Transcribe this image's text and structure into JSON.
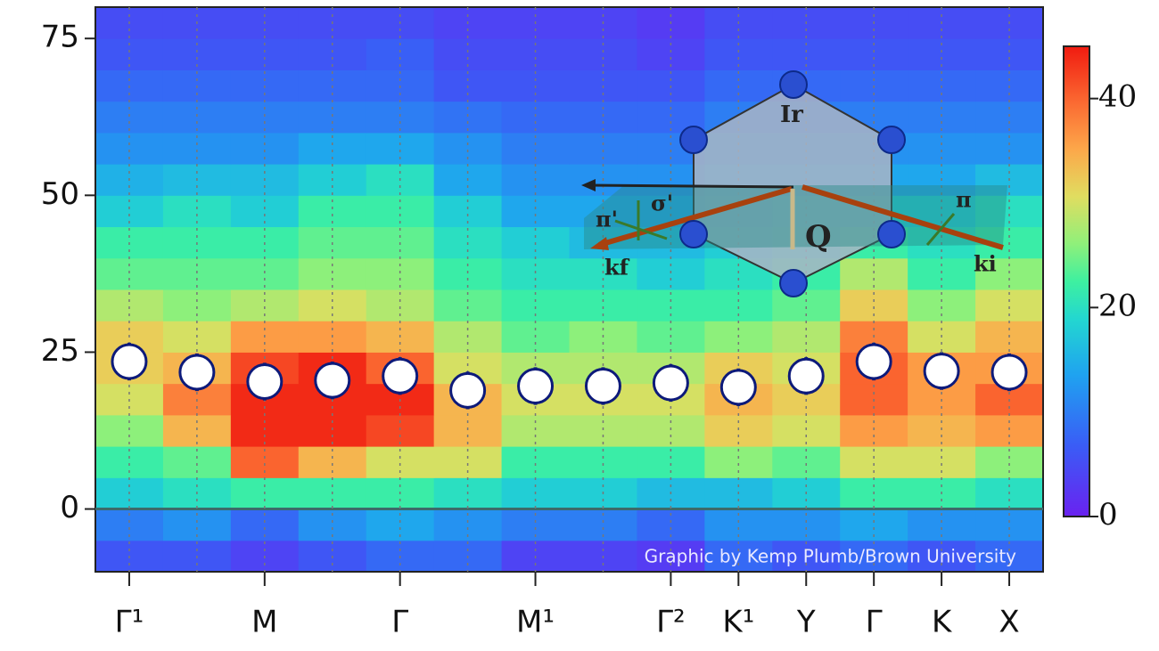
{
  "chart_data": {
    "type": "heatmap-points",
    "categories": [
      "Γ¹",
      null,
      "M",
      null,
      "Γ",
      null,
      "M¹",
      null,
      "Γ²",
      "K¹",
      "Y",
      "Γ",
      "K",
      "X"
    ],
    "y_bins": [
      -10,
      -5,
      0,
      5,
      10,
      15,
      20,
      25,
      30,
      35,
      40,
      45,
      50,
      55,
      60,
      65,
      70,
      75,
      80
    ],
    "z": [
      [
        6,
        6,
        4,
        6,
        8,
        8,
        4,
        4,
        3,
        8,
        6,
        8,
        6,
        8
      ],
      [
        10,
        12,
        8,
        12,
        14,
        12,
        10,
        10,
        8,
        12,
        12,
        14,
        12,
        12
      ],
      [
        18,
        20,
        22,
        22,
        22,
        20,
        18,
        18,
        16,
        16,
        18,
        22,
        22,
        20
      ],
      [
        22,
        24,
        40,
        34,
        30,
        30,
        22,
        22,
        22,
        26,
        24,
        30,
        30,
        26
      ],
      [
        26,
        34,
        44,
        44,
        42,
        34,
        28,
        28,
        28,
        32,
        30,
        36,
        34,
        36
      ],
      [
        30,
        38,
        44,
        44,
        44,
        34,
        30,
        30,
        30,
        34,
        32,
        40,
        36,
        40
      ],
      [
        32,
        34,
        42,
        44,
        40,
        30,
        28,
        28,
        28,
        32,
        30,
        40,
        36,
        36
      ],
      [
        32,
        30,
        36,
        36,
        34,
        28,
        24,
        26,
        24,
        26,
        28,
        38,
        30,
        34
      ],
      [
        28,
        26,
        28,
        30,
        28,
        24,
        22,
        22,
        22,
        22,
        24,
        32,
        26,
        30
      ],
      [
        24,
        24,
        24,
        26,
        26,
        22,
        20,
        20,
        18,
        20,
        22,
        28,
        22,
        26
      ],
      [
        22,
        22,
        22,
        24,
        24,
        20,
        18,
        16,
        16,
        18,
        20,
        22,
        20,
        22
      ],
      [
        18,
        20,
        18,
        22,
        22,
        18,
        14,
        14,
        14,
        16,
        18,
        18,
        18,
        20
      ],
      [
        15,
        16,
        16,
        18,
        20,
        14,
        12,
        12,
        12,
        14,
        14,
        14,
        14,
        16
      ],
      [
        12,
        12,
        12,
        14,
        14,
        12,
        10,
        10,
        10,
        12,
        12,
        12,
        12,
        12
      ],
      [
        10,
        10,
        10,
        10,
        10,
        9,
        8,
        8,
        8,
        10,
        10,
        10,
        10,
        10
      ],
      [
        8,
        8,
        8,
        8,
        8,
        6,
        6,
        6,
        6,
        8,
        8,
        8,
        8,
        8
      ],
      [
        6,
        6,
        6,
        6,
        7,
        5,
        5,
        5,
        4,
        6,
        6,
        6,
        6,
        6
      ],
      [
        5,
        5,
        5,
        5,
        5,
        4,
        4,
        4,
        3,
        5,
        5,
        5,
        5,
        5
      ]
    ],
    "values": [
      23.5,
      21.8,
      20.3,
      20.5,
      21.2,
      18.9,
      19.6,
      19.6,
      20.1,
      19.4,
      21.2,
      23.5,
      22,
      21.8
    ],
    "errors": [
      3,
      3,
      3,
      3,
      3,
      3,
      3,
      3,
      3,
      3,
      3,
      3,
      3,
      3
    ],
    "ylim": [
      -10,
      80
    ],
    "yticks": [
      0,
      25,
      50,
      75
    ],
    "clim": [
      0,
      45
    ],
    "cticks": [
      0,
      20,
      40
    ],
    "annotations": {
      "ir": "Ir",
      "pi_prime": "π'",
      "sigma_prime": "σ'",
      "q": "Q",
      "kf": "kf",
      "ki": "ki",
      "pi": "π",
      "credit": "Graphic by Kemp Plumb/Brown University"
    }
  }
}
